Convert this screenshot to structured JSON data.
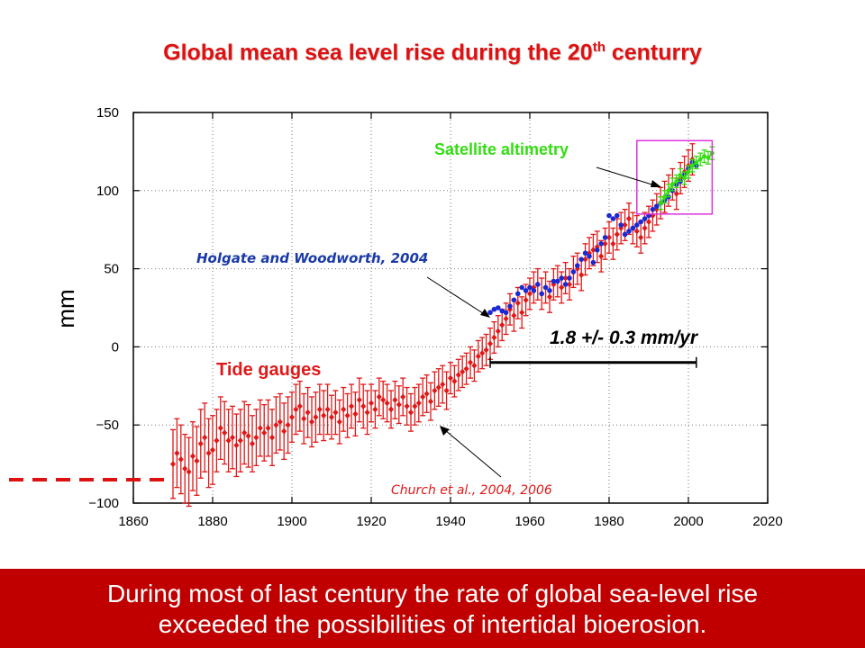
{
  "slide": {
    "title_main": "Global mean sea level rise during the 20",
    "title_sup": "th",
    "title_end": " centurry",
    "footer_line1": "During most of last century the rate of global sea-level rise",
    "footer_line2": "exceeded the possibilities of intertidal bioerosion."
  },
  "colors": {
    "title": "#e01010",
    "tide_gauges": "#e01818",
    "holgate": "#1c28d0",
    "satellite": "#33dd11",
    "box": "#dd33dd",
    "footer_bg": "#c00000",
    "holgate_label": "#1a3aa8"
  },
  "chart_data": {
    "type": "scatter",
    "xlim": [
      1860,
      2020
    ],
    "ylim": [
      -100,
      150
    ],
    "xticks": [
      1860,
      1880,
      1900,
      1920,
      1940,
      1960,
      1980,
      2000,
      2020
    ],
    "yticks": [
      150,
      100,
      50,
      0,
      -50,
      -100
    ],
    "ytick_labels": [
      "150",
      "100",
      "50",
      "0",
      "−50",
      "−100"
    ],
    "ylabel": "mm",
    "grid": "dotted",
    "series": [
      {
        "name": "Tide gauges",
        "style": "points-with-error-bars",
        "x": [
          1870,
          1871,
          1872,
          1873,
          1874,
          1875,
          1876,
          1877,
          1878,
          1879,
          1880,
          1881,
          1882,
          1883,
          1884,
          1885,
          1886,
          1887,
          1888,
          1889,
          1890,
          1891,
          1892,
          1893,
          1894,
          1895,
          1896,
          1897,
          1898,
          1899,
          1900,
          1901,
          1902,
          1903,
          1904,
          1905,
          1906,
          1907,
          1908,
          1909,
          1910,
          1911,
          1912,
          1913,
          1914,
          1915,
          1916,
          1917,
          1918,
          1919,
          1920,
          1921,
          1922,
          1923,
          1924,
          1925,
          1926,
          1927,
          1928,
          1929,
          1930,
          1931,
          1932,
          1933,
          1934,
          1935,
          1936,
          1937,
          1938,
          1939,
          1940,
          1941,
          1942,
          1943,
          1944,
          1945,
          1946,
          1947,
          1948,
          1949,
          1950,
          1951,
          1952,
          1953,
          1954,
          1955,
          1956,
          1957,
          1958,
          1959,
          1960,
          1961,
          1962,
          1963,
          1964,
          1965,
          1966,
          1967,
          1968,
          1969,
          1970,
          1971,
          1972,
          1973,
          1974,
          1975,
          1976,
          1977,
          1978,
          1979,
          1980,
          1981,
          1982,
          1983,
          1984,
          1985,
          1986,
          1987,
          1988,
          1989,
          1990,
          1991,
          1992,
          1993,
          1994,
          1995,
          1996,
          1997,
          1998,
          1999,
          2000,
          2001
        ],
        "values": [
          -75,
          -68,
          -72,
          -78,
          -80,
          -70,
          -73,
          -62,
          -58,
          -68,
          -66,
          -60,
          -52,
          -55,
          -60,
          -58,
          -63,
          -60,
          -55,
          -57,
          -62,
          -58,
          -52,
          -55,
          -52,
          -58,
          -50,
          -48,
          -54,
          -50,
          -45,
          -40,
          -38,
          -46,
          -42,
          -48,
          -45,
          -40,
          -44,
          -40,
          -45,
          -42,
          -48,
          -40,
          -44,
          -38,
          -43,
          -34,
          -38,
          -42,
          -36,
          -40,
          -32,
          -34,
          -36,
          -40,
          -34,
          -37,
          -32,
          -38,
          -42,
          -38,
          -36,
          -32,
          -30,
          -35,
          -28,
          -26,
          -24,
          -28,
          -20,
          -22,
          -18,
          -16,
          -14,
          -10,
          -12,
          -6,
          -4,
          -2,
          2,
          6,
          10,
          14,
          18,
          24,
          20,
          28,
          22,
          30,
          34,
          38,
          40,
          34,
          38,
          32,
          40,
          42,
          38,
          44,
          40,
          48,
          50,
          46,
          56,
          60,
          62,
          64,
          58,
          66,
          70,
          66,
          72,
          76,
          78,
          82,
          76,
          74,
          70,
          76,
          80,
          84,
          88,
          92,
          96,
          100,
          104,
          98,
          108,
          112,
          116,
          120
        ],
        "errors": [
          22,
          22,
          22,
          22,
          22,
          22,
          22,
          22,
          22,
          22,
          22,
          20,
          20,
          20,
          20,
          20,
          20,
          20,
          20,
          20,
          18,
          18,
          18,
          18,
          18,
          18,
          18,
          18,
          18,
          18,
          16,
          16,
          16,
          16,
          16,
          16,
          16,
          16,
          16,
          16,
          14,
          14,
          14,
          14,
          14,
          14,
          14,
          14,
          14,
          14,
          12,
          12,
          12,
          12,
          12,
          12,
          12,
          12,
          12,
          12,
          12,
          12,
          12,
          12,
          12,
          12,
          12,
          12,
          12,
          12,
          10,
          10,
          10,
          10,
          10,
          10,
          10,
          10,
          10,
          10,
          10,
          10,
          10,
          10,
          10,
          10,
          10,
          10,
          10,
          10,
          10,
          10,
          10,
          10,
          10,
          10,
          10,
          10,
          10,
          10,
          10,
          10,
          10,
          10,
          10,
          10,
          10,
          10,
          10,
          10,
          10,
          10,
          10,
          10,
          10,
          10,
          10,
          10,
          10,
          10,
          10,
          10,
          10,
          10,
          10,
          10,
          10,
          10,
          10,
          10,
          10,
          10
        ]
      },
      {
        "name": "Holgate and Woodworth, 2004",
        "style": "points",
        "x": [
          1950,
          1951,
          1952,
          1953,
          1954,
          1955,
          1956,
          1957,
          1958,
          1959,
          1960,
          1961,
          1962,
          1963,
          1964,
          1965,
          1966,
          1967,
          1968,
          1969,
          1970,
          1971,
          1972,
          1973,
          1974,
          1975,
          1976,
          1977,
          1978,
          1979,
          1980,
          1981,
          1982,
          1983,
          1984,
          1985,
          1986,
          1987,
          1988,
          1989,
          1990,
          1991,
          1992,
          1993,
          1994,
          1995,
          1996,
          1997,
          1998,
          1999,
          2000,
          2001,
          2002
        ],
        "values": [
          22,
          24,
          25,
          23,
          22,
          26,
          30,
          34,
          38,
          36,
          38,
          36,
          40,
          34,
          38,
          36,
          42,
          42,
          44,
          40,
          44,
          48,
          52,
          56,
          60,
          58,
          54,
          62,
          66,
          70,
          84,
          82,
          84,
          78,
          72,
          74,
          76,
          78,
          80,
          82,
          84,
          88,
          90,
          92,
          94,
          96,
          100,
          104,
          106,
          110,
          114,
          118,
          116
        ]
      },
      {
        "name": "Satellite altimetry",
        "style": "points-with-error-bars",
        "x": [
          1993,
          1994,
          1995,
          1996,
          1997,
          1998,
          1999,
          2000,
          2001,
          2002,
          2003,
          2004,
          2005,
          2006
        ],
        "values": [
          92,
          96,
          100,
          104,
          106,
          110,
          108,
          112,
          116,
          118,
          120,
          122,
          121,
          124
        ],
        "errors": [
          4,
          4,
          4,
          4,
          4,
          4,
          4,
          4,
          4,
          4,
          4,
          4,
          4,
          4
        ]
      }
    ],
    "annotations": {
      "satellite_label": "Satellite altimetry",
      "holgate_label": "Holgate and Woodworth, 2004",
      "tide_label": "Tide gauges",
      "church_label": "Church et al., 2004, 2006",
      "rate_label": "1.8 +/- 0.3 mm/yr",
      "rate_bar_x": [
        1950,
        2002
      ],
      "rate_bar_y": -10,
      "highlight_box_x": [
        1987,
        2006
      ],
      "highlight_box_y": [
        85,
        132
      ]
    },
    "dashed_line_y": -85
  }
}
